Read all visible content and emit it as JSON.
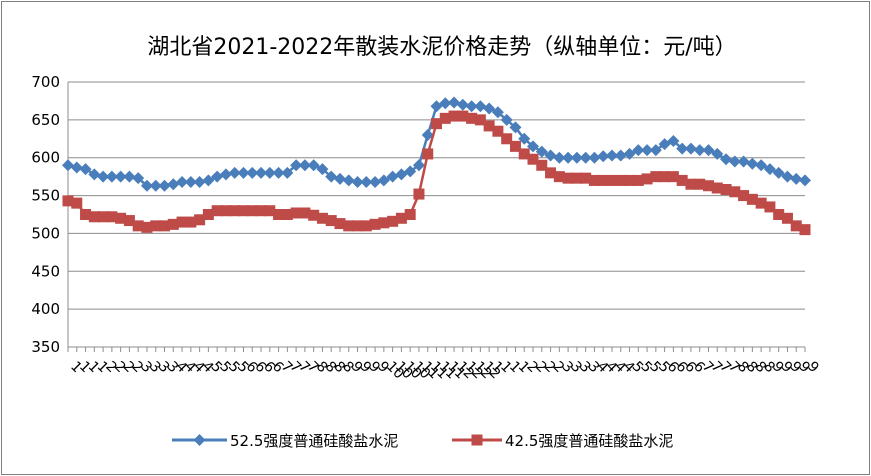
{
  "chart_data": {
    "type": "line",
    "title": "湖北省2021-2022年散装水泥价格走势（纵轴单位：元/吨）",
    "ylim": [
      350,
      700
    ],
    "yticks": [
      350,
      400,
      450,
      500,
      550,
      600,
      650,
      700
    ],
    "grid": "horizontal",
    "legend_position": "bottom",
    "x": [
      "1",
      "1",
      "1",
      "1",
      "2",
      "2",
      "2",
      "2",
      "3",
      "3",
      "3",
      "3",
      "4",
      "4",
      "4",
      "4",
      "5",
      "5",
      "5",
      "5",
      "6",
      "6",
      "6",
      "6",
      "7",
      "7",
      "7",
      "7",
      "8",
      "8",
      "8",
      "8",
      "9",
      "9",
      "9",
      "9",
      "10",
      "10",
      "10",
      "10",
      "11",
      "11",
      "11",
      "11",
      "12",
      "12",
      "12",
      "12",
      "1",
      "1",
      "1",
      "1",
      "2",
      "2",
      "2",
      "2",
      "3",
      "3",
      "3",
      "3",
      "4",
      "4",
      "4",
      "4",
      "5",
      "5",
      "5",
      "5",
      "6",
      "6",
      "6",
      "6",
      "7",
      "7",
      "7",
      "7",
      "8",
      "8",
      "8",
      "8",
      "9",
      "9",
      "9",
      "9",
      "9"
    ],
    "series": [
      {
        "name": "52.5强度普通硅酸盐水泥",
        "color": "#4a7ebb",
        "marker": "diamond",
        "values": [
          590,
          587,
          585,
          578,
          575,
          575,
          575,
          575,
          573,
          563,
          563,
          563,
          565,
          568,
          568,
          568,
          570,
          575,
          578,
          580,
          580,
          580,
          580,
          580,
          580,
          580,
          590,
          590,
          590,
          585,
          575,
          572,
          570,
          568,
          568,
          568,
          570,
          575,
          578,
          582,
          590,
          630,
          668,
          672,
          673,
          670,
          668,
          668,
          665,
          660,
          650,
          640,
          625,
          615,
          608,
          603,
          600,
          600,
          600,
          600,
          600,
          602,
          603,
          603,
          605,
          610,
          610,
          610,
          618,
          622,
          612,
          612,
          610,
          610,
          605,
          598,
          595,
          595,
          592,
          590,
          585,
          580,
          575,
          572,
          570
        ]
      },
      {
        "name": "42.5强度普通硅酸盐水泥",
        "color": "#be4b48",
        "marker": "square",
        "values": [
          543,
          540,
          525,
          522,
          522,
          522,
          520,
          517,
          510,
          508,
          510,
          510,
          512,
          515,
          515,
          518,
          525,
          530,
          530,
          530,
          530,
          530,
          530,
          530,
          525,
          525,
          527,
          527,
          524,
          520,
          517,
          513,
          510,
          510,
          510,
          512,
          514,
          516,
          520,
          525,
          552,
          605,
          645,
          652,
          655,
          655,
          652,
          650,
          642,
          635,
          625,
          615,
          605,
          598,
          590,
          580,
          575,
          573,
          573,
          573,
          570,
          570,
          570,
          570,
          570,
          570,
          572,
          575,
          575,
          575,
          570,
          565,
          565,
          563,
          560,
          558,
          555,
          550,
          545,
          540,
          535,
          525,
          520,
          510,
          505
        ]
      }
    ]
  }
}
